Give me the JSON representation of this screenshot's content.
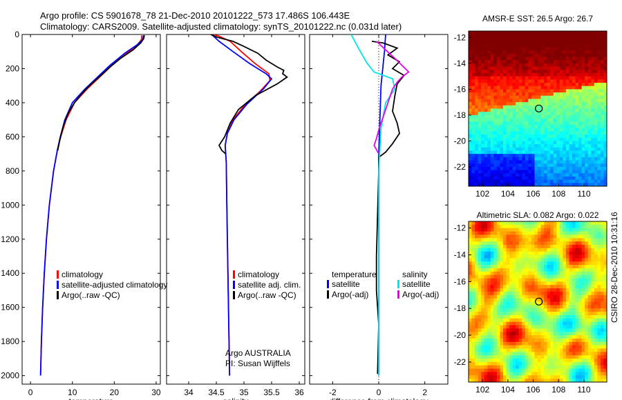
{
  "header": {
    "line1": "Argo profile: CS 5901678_78 21-Dec-2010 20101222_573 17.486S 106.443E",
    "line2": "Climatology: CARS2009. Satellite-adjusted climatology: synTS_20101222.nc (0.031d later)"
  },
  "side_stamp": "CSIRO 28-Dec-2010 10:31:16",
  "colors": {
    "climatology": "#ff0000",
    "satellite": "#0000ff",
    "argo": "#000000",
    "sal_sat": "#00e5e5",
    "sal_argo": "#e600e6"
  },
  "chart_data": [
    {
      "id": "temperature",
      "type": "line",
      "xlabel": "temperature",
      "xlim": [
        -2,
        31
      ],
      "ylim": [
        0,
        2050
      ],
      "y_inverted": true,
      "xticks": [
        0,
        10,
        20,
        30
      ],
      "yticks": [
        0,
        200,
        400,
        600,
        800,
        1000,
        1200,
        1400,
        1600,
        1800,
        2000
      ],
      "legend": [
        "climatology",
        "satellite-adjusted climatology",
        "Argo(..raw -QC)"
      ],
      "series": [
        {
          "name": "climatology",
          "color": "#ff0000",
          "points": [
            [
              26.6,
              5
            ],
            [
              26.5,
              30
            ],
            [
              25.5,
              60
            ],
            [
              23,
              110
            ],
            [
              19.5,
              180
            ],
            [
              16.5,
              250
            ],
            [
              13.5,
              320
            ],
            [
              10.5,
              400
            ],
            [
              8.5,
              500
            ],
            [
              7.2,
              600
            ],
            [
              6.4,
              680
            ],
            [
              5.5,
              800
            ],
            [
              4.5,
              1000
            ],
            [
              3.8,
              1200
            ],
            [
              3.3,
              1400
            ],
            [
              2.9,
              1600
            ],
            [
              2.6,
              1800
            ],
            [
              2.4,
              1990
            ]
          ]
        },
        {
          "name": "satellite-adjusted climatology",
          "color": "#0000ff",
          "points": [
            [
              27.0,
              5
            ],
            [
              26.8,
              30
            ],
            [
              25.5,
              60
            ],
            [
              22.5,
              110
            ],
            [
              19,
              180
            ],
            [
              16,
              250
            ],
            [
              13,
              320
            ],
            [
              10,
              400
            ],
            [
              8.2,
              500
            ],
            [
              7.1,
              600
            ],
            [
              6.4,
              680
            ],
            [
              5.5,
              800
            ],
            [
              4.5,
              1000
            ],
            [
              3.8,
              1200
            ],
            [
              3.3,
              1400
            ],
            [
              2.9,
              1600
            ],
            [
              2.6,
              1800
            ],
            [
              2.4,
              2000
            ]
          ]
        },
        {
          "name": "Argo(..raw -QC)",
          "color": "#000000",
          "points": [
            [
              27.2,
              5
            ],
            [
              27.0,
              25
            ],
            [
              26.3,
              50
            ],
            [
              24.5,
              90
            ],
            [
              21.5,
              140
            ],
            [
              19,
              190
            ],
            [
              16.8,
              240
            ],
            [
              14.5,
              290
            ],
            [
              12.5,
              340
            ],
            [
              10.5,
              400
            ],
            [
              9,
              460
            ],
            [
              7.8,
              540
            ],
            [
              7,
              620
            ],
            [
              6.5,
              680
            ]
          ]
        }
      ]
    },
    {
      "id": "salinity",
      "type": "line",
      "xlabel": "salinity",
      "xlim": [
        33.6,
        36.1
      ],
      "ylim": [
        0,
        2050
      ],
      "y_inverted": true,
      "xticks": [
        34,
        34.5,
        35,
        35.5,
        36
      ],
      "legend": [
        "climatology",
        "satellite adj. clim.",
        "Argo(..raw -QC)"
      ],
      "annotation": [
        "Argo AUSTRALIA",
        "PI: Susan Wijffels"
      ],
      "series": [
        {
          "name": "climatology",
          "color": "#ff0000",
          "points": [
            [
              34.45,
              0
            ],
            [
              34.55,
              10
            ],
            [
              34.75,
              40
            ],
            [
              34.95,
              100
            ],
            [
              35.2,
              170
            ],
            [
              35.45,
              230
            ],
            [
              35.47,
              270
            ],
            [
              35.3,
              330
            ],
            [
              35.0,
              420
            ],
            [
              34.8,
              500
            ],
            [
              34.7,
              580
            ],
            [
              34.66,
              650
            ],
            [
              34.68,
              750
            ],
            [
              34.69,
              1000
            ],
            [
              34.7,
              1200
            ],
            [
              34.71,
              1400
            ],
            [
              34.72,
              1600
            ],
            [
              34.73,
              1800
            ],
            [
              34.74,
              2000
            ]
          ]
        },
        {
          "name": "satellite adj. clim.",
          "color": "#0000ff",
          "points": [
            [
              34.42,
              0
            ],
            [
              34.45,
              10
            ],
            [
              34.55,
              40
            ],
            [
              34.8,
              100
            ],
            [
              35.1,
              170
            ],
            [
              35.4,
              230
            ],
            [
              35.5,
              260
            ],
            [
              35.35,
              320
            ],
            [
              35.05,
              410
            ],
            [
              34.82,
              500
            ],
            [
              34.7,
              580
            ],
            [
              34.66,
              650
            ],
            [
              34.68,
              750
            ],
            [
              34.69,
              1000
            ],
            [
              34.7,
              1200
            ],
            [
              34.71,
              1400
            ],
            [
              34.72,
              1600
            ],
            [
              34.73,
              1800
            ],
            [
              34.74,
              2000
            ]
          ]
        },
        {
          "name": "Argo(..raw -QC)",
          "color": "#000000",
          "points": [
            [
              34.4,
              0
            ],
            [
              34.5,
              15
            ],
            [
              34.8,
              40
            ],
            [
              35.0,
              70
            ],
            [
              35.25,
              110
            ],
            [
              35.4,
              150
            ],
            [
              35.6,
              190
            ],
            [
              35.72,
              210
            ],
            [
              35.7,
              230
            ],
            [
              35.78,
              250
            ],
            [
              35.6,
              290
            ],
            [
              35.2,
              360
            ],
            [
              34.9,
              440
            ],
            [
              34.75,
              520
            ],
            [
              34.65,
              600
            ],
            [
              34.55,
              650
            ],
            [
              34.6,
              680
            ],
            [
              34.67,
              700
            ]
          ]
        }
      ]
    },
    {
      "id": "difference",
      "type": "line",
      "xlabel": "difference from climatology",
      "xlim": [
        -3,
        3
      ],
      "ylim": [
        0,
        2050
      ],
      "y_inverted": true,
      "xticks": [
        -2,
        0,
        2
      ],
      "legend_temperature": {
        "title": "temperature",
        "items": [
          "satellite",
          "Argo(-adj)"
        ]
      },
      "legend_salinity": {
        "title": "salinity",
        "items": [
          "satellite",
          "Argo(-adj)"
        ]
      },
      "series": [
        {
          "name": "temperature satellite",
          "color": "#0000ff",
          "points": [
            [
              0.3,
              0
            ],
            [
              0.25,
              100
            ],
            [
              0.1,
              300
            ],
            [
              0,
              700
            ],
            [
              0,
              2000
            ]
          ]
        },
        {
          "name": "temperature Argo(-adj)",
          "color": "#000000",
          "points": [
            [
              -0.3,
              40
            ],
            [
              0.2,
              50
            ],
            [
              0.8,
              80
            ],
            [
              0.4,
              120
            ],
            [
              0.9,
              160
            ],
            [
              0.6,
              200
            ],
            [
              1.1,
              240
            ],
            [
              0.8,
              290
            ],
            [
              0.7,
              360
            ],
            [
              0.6,
              450
            ],
            [
              0.8,
              520
            ],
            [
              0.9,
              580
            ],
            [
              0.6,
              640
            ],
            [
              0.3,
              690
            ],
            [
              0,
              720
            ],
            [
              0,
              800
            ],
            [
              -0.1,
              1300
            ],
            [
              -0.1,
              1500
            ],
            [
              0,
              1700
            ],
            [
              -0.05,
              1990
            ]
          ]
        },
        {
          "name": "salinity satellite",
          "color": "#00e5e5",
          "points": [
            [
              -1.2,
              0
            ],
            [
              -0.8,
              100
            ],
            [
              -0.5,
              170
            ],
            [
              -0.2,
              220
            ],
            [
              0.6,
              260
            ],
            [
              0.7,
              320
            ],
            [
              0.3,
              400
            ],
            [
              0.1,
              550
            ],
            [
              0,
              800
            ],
            [
              0,
              2000
            ]
          ]
        },
        {
          "name": "salinity Argo(-adj)",
          "color": "#e600e6",
          "points": [
            [
              -0.1,
              40
            ],
            [
              0.3,
              90
            ],
            [
              0.7,
              140
            ],
            [
              1.0,
              180
            ],
            [
              1.3,
              220
            ],
            [
              1.0,
              250
            ],
            [
              0.8,
              280
            ],
            [
              0.6,
              320
            ],
            [
              0.4,
              400
            ],
            [
              0.2,
              480
            ],
            [
              0,
              560
            ],
            [
              -0.1,
              610
            ],
            [
              -0.2,
              650
            ],
            [
              0,
              700
            ]
          ]
        }
      ]
    },
    {
      "id": "amsre-sst",
      "type": "heatmap",
      "title": "AMSR-E SST: 26.5 Argo: 26.7",
      "xlim": [
        100.9,
        111.8
      ],
      "ylim": [
        -23.5,
        -11.5
      ],
      "xticks": [
        102,
        104,
        106,
        108,
        110
      ],
      "yticks": [
        -12,
        -14,
        -16,
        -18,
        -20,
        -22
      ],
      "marker": [
        106.44,
        -17.49
      ]
    },
    {
      "id": "altimetric-sla",
      "type": "heatmap",
      "title": "Altimetric SLA: 0.082 Argo: 0.022",
      "xlim": [
        100.9,
        111.8
      ],
      "ylim": [
        -23.5,
        -11.5
      ],
      "xticks": [
        102,
        104,
        106,
        108,
        110
      ],
      "yticks": [
        -12,
        -14,
        -16,
        -18,
        -20,
        -22
      ],
      "marker": [
        106.44,
        -17.49
      ]
    }
  ]
}
